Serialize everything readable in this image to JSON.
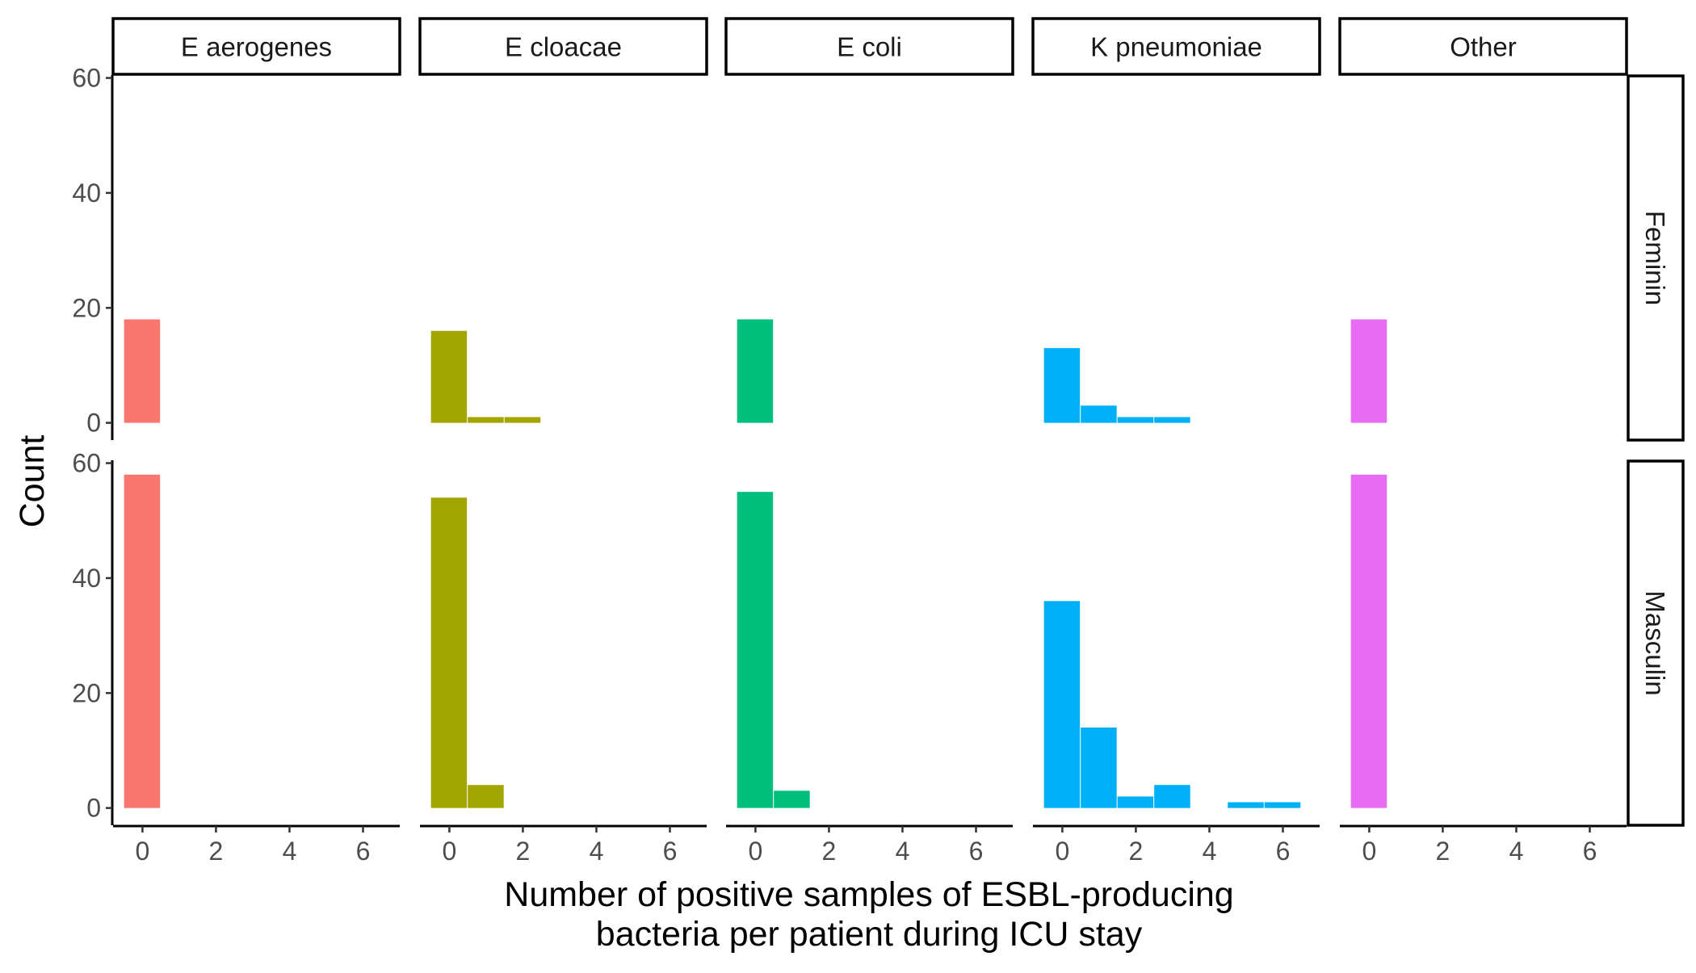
{
  "chart_data": {
    "type": "bar",
    "subtype": "faceted-histogram",
    "xlabel": [
      "Number of positive samples of ESBL-producing",
      "bacteria per patient during ICU stay"
    ],
    "ylabel": "Count",
    "x_ticks": [
      0,
      2,
      4,
      6
    ],
    "y_ticks": [
      0,
      20,
      40,
      60
    ],
    "xlim": [
      -0.8,
      7.0
    ],
    "ylim": [
      -3,
      60.5
    ],
    "bin_width": 1,
    "grid": false,
    "legend": "none",
    "columns": [
      {
        "name": "E aerogenes",
        "color": "#F8766D"
      },
      {
        "name": "E cloacae",
        "color": "#A3A500"
      },
      {
        "name": "E coli",
        "color": "#00BF7D"
      },
      {
        "name": "K pneumoniae",
        "color": "#00B0F6"
      },
      {
        "name": "Other",
        "color": "#E76BF3"
      }
    ],
    "rows": [
      "Feminin",
      "Masculin"
    ],
    "panels": [
      {
        "row": "Feminin",
        "column": "E aerogenes",
        "bins": [
          {
            "x": 0,
            "count": 18
          }
        ]
      },
      {
        "row": "Feminin",
        "column": "E cloacae",
        "bins": [
          {
            "x": 0,
            "count": 16
          },
          {
            "x": 1,
            "count": 1
          },
          {
            "x": 2,
            "count": 1
          }
        ]
      },
      {
        "row": "Feminin",
        "column": "E coli",
        "bins": [
          {
            "x": 0,
            "count": 18
          }
        ]
      },
      {
        "row": "Feminin",
        "column": "K pneumoniae",
        "bins": [
          {
            "x": 0,
            "count": 13
          },
          {
            "x": 1,
            "count": 3
          },
          {
            "x": 2,
            "count": 1
          },
          {
            "x": 3,
            "count": 1
          }
        ]
      },
      {
        "row": "Feminin",
        "column": "Other",
        "bins": [
          {
            "x": 0,
            "count": 18
          }
        ]
      },
      {
        "row": "Masculin",
        "column": "E aerogenes",
        "bins": [
          {
            "x": 0,
            "count": 58
          }
        ]
      },
      {
        "row": "Masculin",
        "column": "E cloacae",
        "bins": [
          {
            "x": 0,
            "count": 54
          },
          {
            "x": 1,
            "count": 4
          }
        ]
      },
      {
        "row": "Masculin",
        "column": "E coli",
        "bins": [
          {
            "x": 0,
            "count": 55
          },
          {
            "x": 1,
            "count": 3
          }
        ]
      },
      {
        "row": "Masculin",
        "column": "K pneumoniae",
        "bins": [
          {
            "x": 0,
            "count": 36
          },
          {
            "x": 1,
            "count": 14
          },
          {
            "x": 2,
            "count": 2
          },
          {
            "x": 3,
            "count": 4
          },
          {
            "x": 5,
            "count": 1
          },
          {
            "x": 6,
            "count": 1
          }
        ]
      },
      {
        "row": "Masculin",
        "column": "Other",
        "bins": [
          {
            "x": 0,
            "count": 58
          }
        ]
      }
    ]
  }
}
